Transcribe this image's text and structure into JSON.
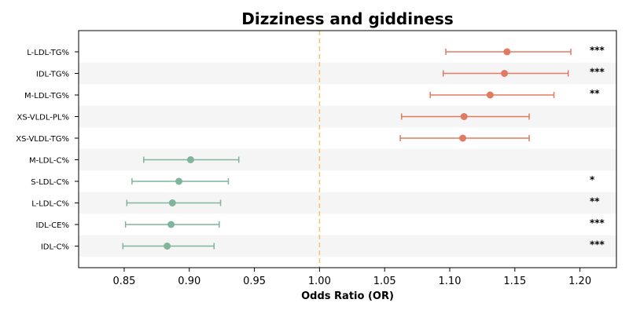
{
  "chart_data": {
    "type": "forest",
    "title": "Dizziness and giddiness",
    "xlabel": "Odds Ratio (OR)",
    "xlim": [
      0.815,
      1.228
    ],
    "xticks": [
      0.85,
      0.9,
      0.95,
      1.0,
      1.05,
      1.1,
      1.15,
      1.2
    ],
    "reference_line": 1.0,
    "grid": false,
    "banded_rows": true,
    "colors": {
      "positive": "#e07b62",
      "negative": "#7fb59a",
      "reference": "#f5c46b",
      "band": "#f5f5f5"
    },
    "rows": [
      {
        "label": "L-LDL-TG%",
        "or": 1.144,
        "ci_low": 1.097,
        "ci_high": 1.193,
        "sig": "***"
      },
      {
        "label": "IDL-TG%",
        "or": 1.142,
        "ci_low": 1.095,
        "ci_high": 1.191,
        "sig": "***"
      },
      {
        "label": "M-LDL-TG%",
        "or": 1.131,
        "ci_low": 1.085,
        "ci_high": 1.18,
        "sig": "**"
      },
      {
        "label": "XS-VLDL-PL%",
        "or": 1.111,
        "ci_low": 1.063,
        "ci_high": 1.161,
        "sig": ""
      },
      {
        "label": "XS-VLDL-TG%",
        "or": 1.11,
        "ci_low": 1.062,
        "ci_high": 1.161,
        "sig": ""
      },
      {
        "label": "M-LDL-C%",
        "or": 0.901,
        "ci_low": 0.865,
        "ci_high": 0.938,
        "sig": ""
      },
      {
        "label": "S-LDL-C%",
        "or": 0.892,
        "ci_low": 0.856,
        "ci_high": 0.93,
        "sig": "*"
      },
      {
        "label": "L-LDL-C%",
        "or": 0.887,
        "ci_low": 0.852,
        "ci_high": 0.924,
        "sig": "**"
      },
      {
        "label": "IDL-CE%",
        "or": 0.886,
        "ci_low": 0.851,
        "ci_high": 0.923,
        "sig": "***"
      },
      {
        "label": "IDL-C%",
        "or": 0.883,
        "ci_low": 0.849,
        "ci_high": 0.919,
        "sig": "***"
      }
    ]
  }
}
